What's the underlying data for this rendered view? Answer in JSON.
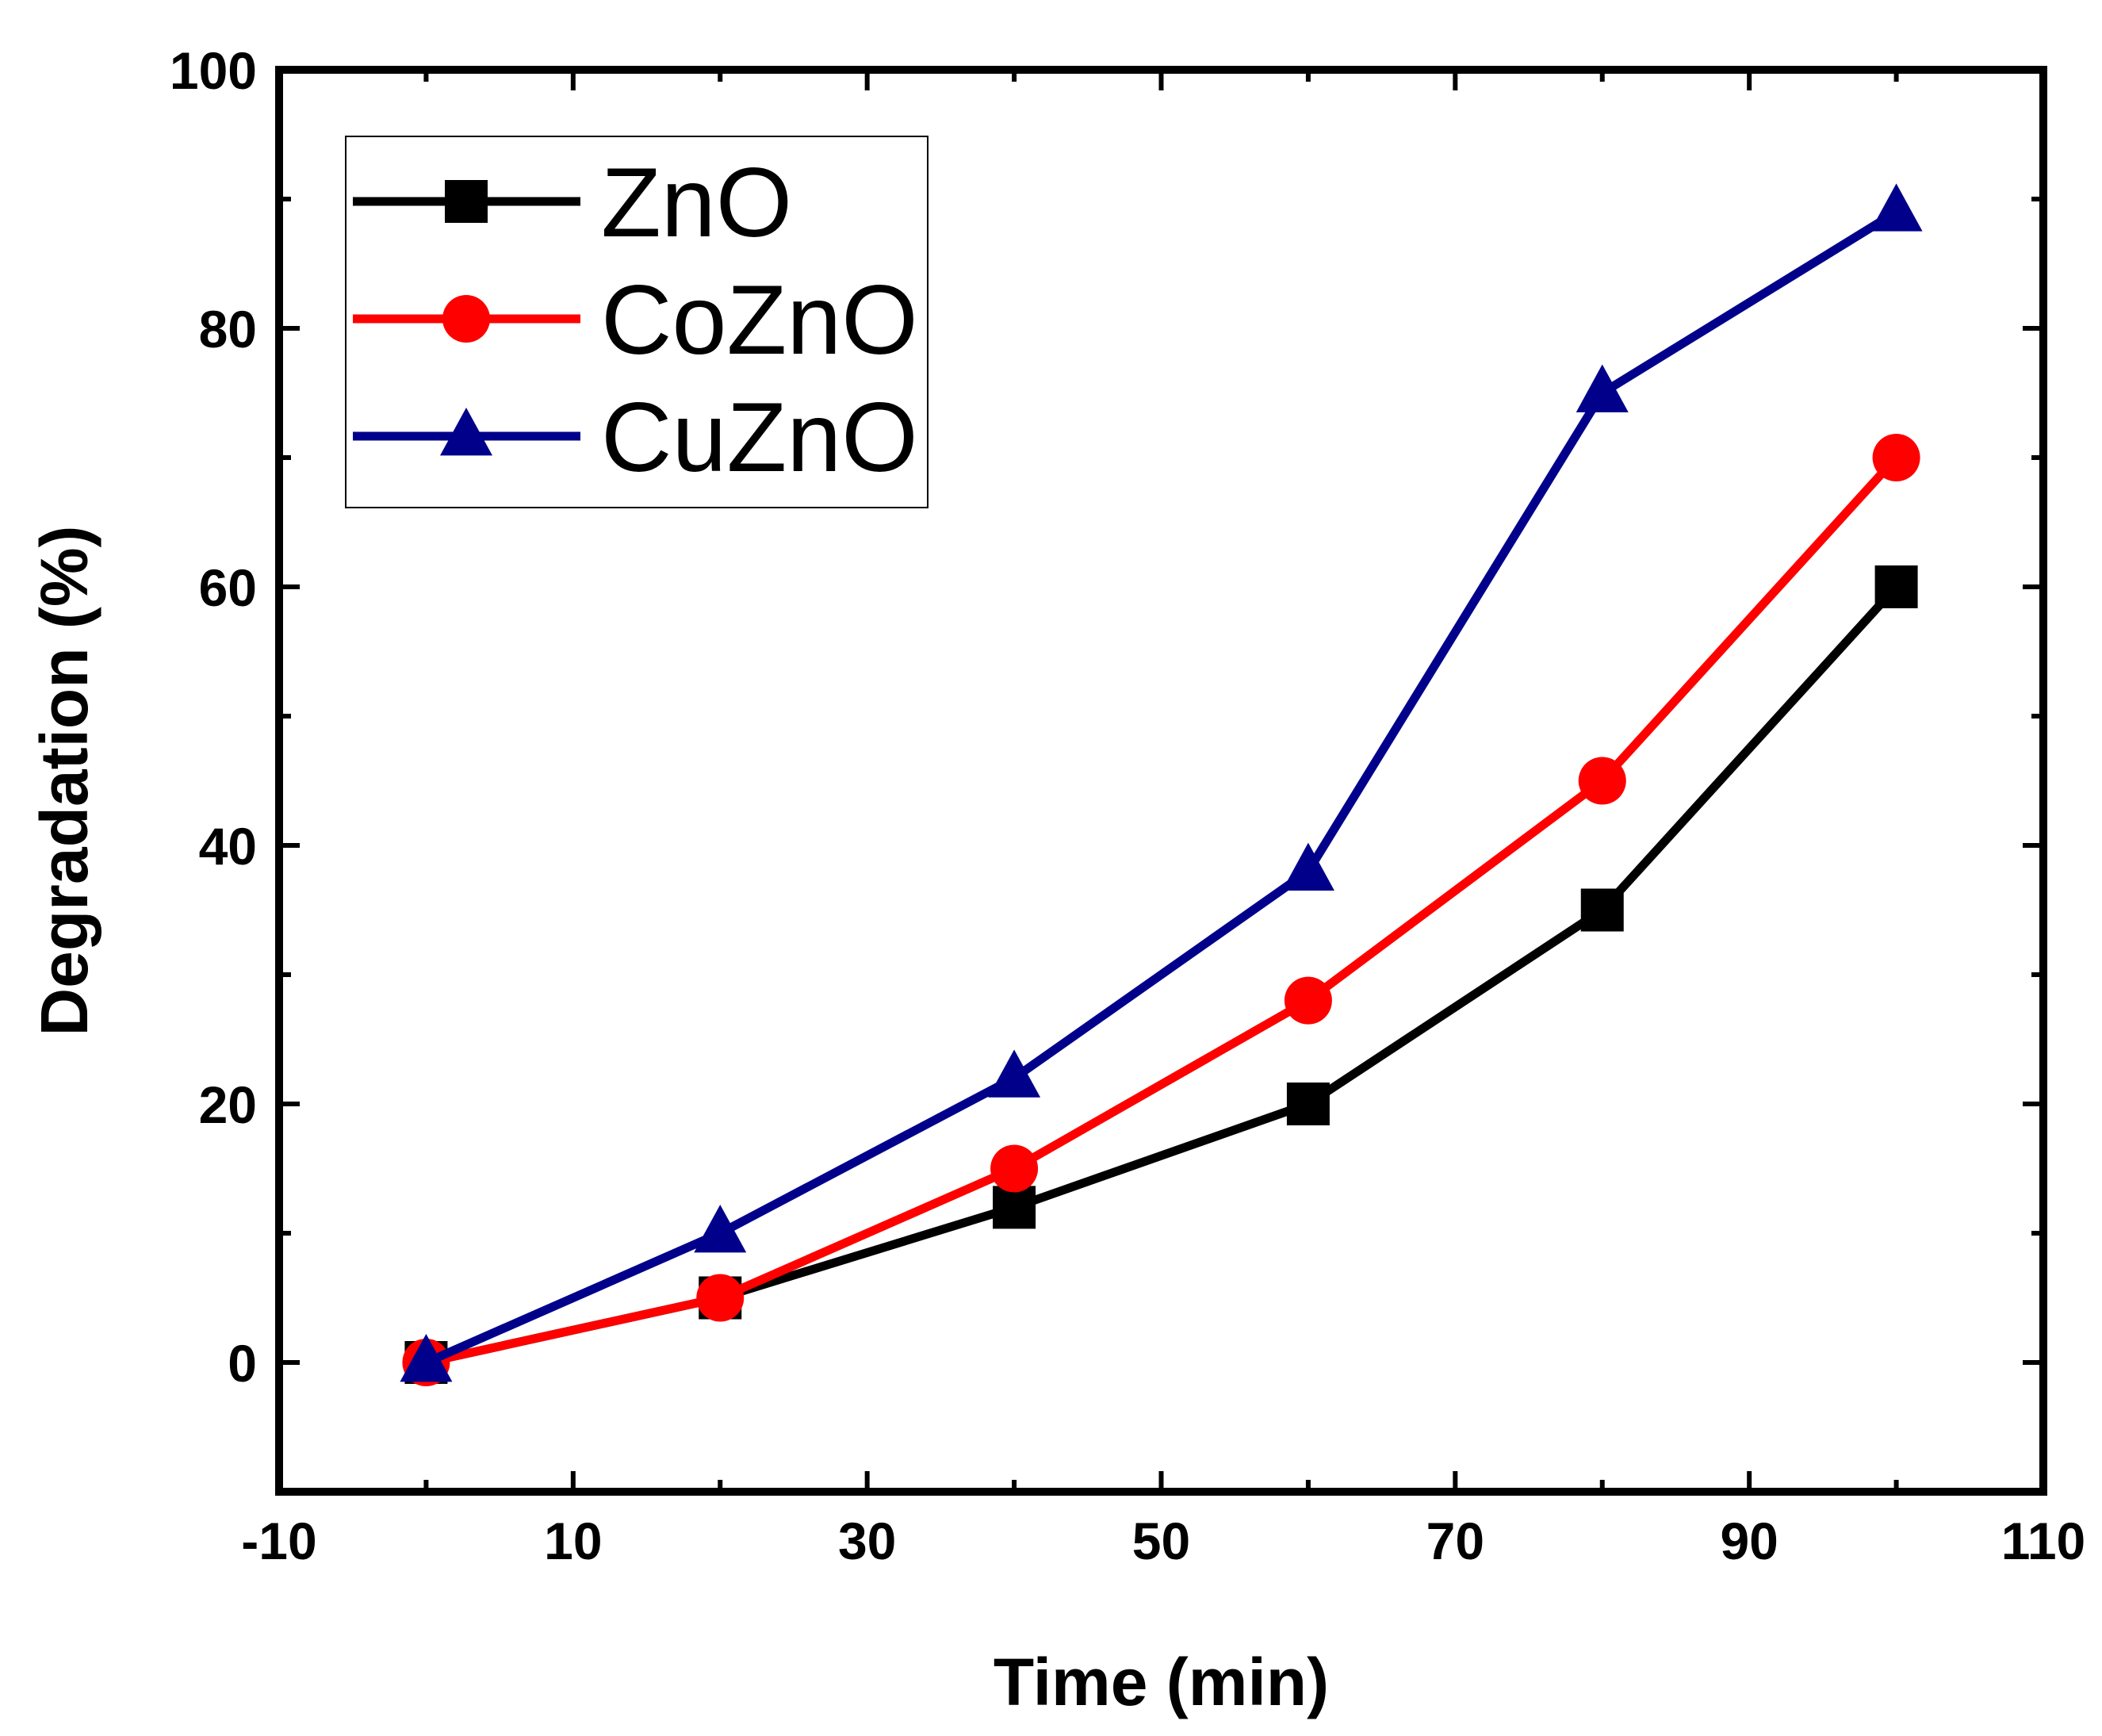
{
  "chart_data": {
    "type": "line",
    "title": "",
    "xlabel": "Time (min)",
    "ylabel": "Degradation (%)",
    "xlim": [
      -10,
      110
    ],
    "ylim": [
      -10,
      100
    ],
    "x_ticks": [
      -10,
      10,
      30,
      50,
      70,
      90,
      110
    ],
    "x_tick_labels": [
      "-10",
      "10",
      "30",
      "50",
      "70",
      "90",
      "110"
    ],
    "y_ticks": [
      0,
      20,
      40,
      60,
      80,
      100
    ],
    "y_tick_labels": [
      "0",
      "20",
      "40",
      "60",
      "80",
      "100"
    ],
    "grid": false,
    "legend_position": "top-left",
    "x": [
      0,
      20,
      40,
      60,
      80,
      100
    ],
    "series": [
      {
        "name": "ZnO",
        "color": "#000000",
        "marker": "square",
        "values": [
          0,
          5,
          12,
          20,
          35,
          60
        ]
      },
      {
        "name": "CoZnO",
        "color": "#ff0000",
        "marker": "circle",
        "values": [
          0,
          5,
          15,
          28,
          45,
          70
        ]
      },
      {
        "name": "CuZnO",
        "color": "#00008b",
        "marker": "triangle",
        "values": [
          0,
          10,
          22,
          38,
          75,
          89
        ]
      }
    ]
  }
}
